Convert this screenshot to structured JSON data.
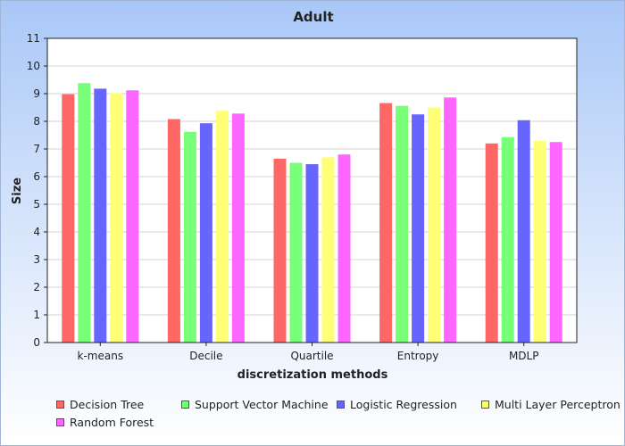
{
  "chart_data": {
    "type": "bar",
    "title": "Adult",
    "xlabel": "discretization methods",
    "ylabel": "Size",
    "ylim": [
      0,
      11
    ],
    "yticks": [
      "0",
      "1",
      "2",
      "3",
      "4",
      "5",
      "6",
      "7",
      "8",
      "9",
      "10",
      "11"
    ],
    "grid": true,
    "legend_position": "bottom",
    "categories": [
      "k-means",
      "Decile",
      "Quartile",
      "Entropy",
      "MDLP"
    ],
    "series": [
      {
        "name": "Decision Tree",
        "color": "#ff6666",
        "values": [
          8.98,
          8.08,
          6.65,
          8.66,
          7.2
        ]
      },
      {
        "name": "Support Vector Machine",
        "color": "#77ff77",
        "values": [
          9.38,
          7.62,
          6.5,
          8.56,
          7.43
        ]
      },
      {
        "name": "Logistic Regression",
        "color": "#6666ff",
        "values": [
          9.18,
          7.93,
          6.45,
          8.25,
          8.04
        ]
      },
      {
        "name": "Multi Layer Perceptron",
        "color": "#ffff77",
        "values": [
          9.02,
          8.38,
          6.7,
          8.5,
          7.3
        ]
      },
      {
        "name": "Random Forest",
        "color": "#ff66ff",
        "values": [
          9.12,
          8.28,
          6.8,
          8.86,
          7.25
        ]
      }
    ]
  }
}
